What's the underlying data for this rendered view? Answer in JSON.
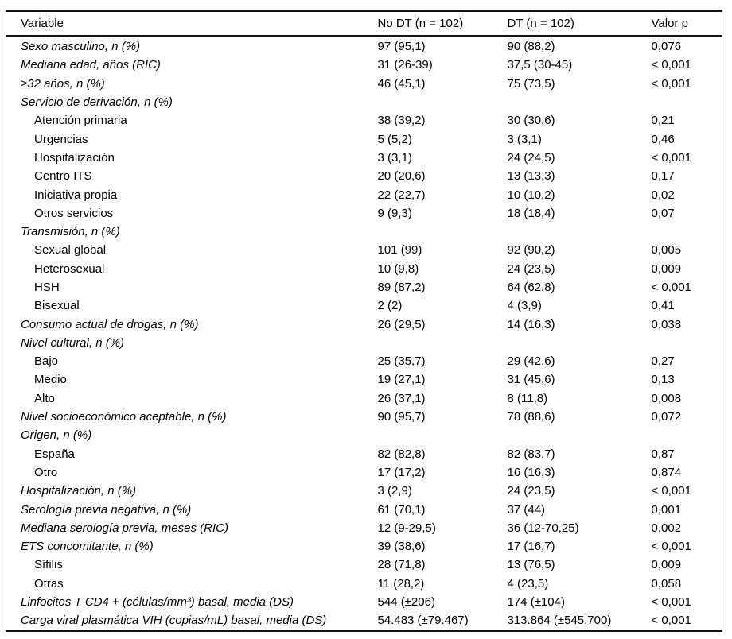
{
  "table": {
    "headers": [
      "Variable",
      "No DT (n = 102)",
      "DT (n = 102)",
      "Valor p"
    ],
    "rows": [
      {
        "label": "Sexo masculino, n (%)",
        "type": "main",
        "no_dt": "97 (95,1)",
        "dt": "90 (88,2)",
        "p": "0,076"
      },
      {
        "label": "Mediana edad, años (RIC)",
        "type": "main",
        "no_dt": "31 (26-39)",
        "dt": "37,5 (30-45)",
        "p": "< 0,001"
      },
      {
        "label": "≥32 años, n (%)",
        "type": "main",
        "no_dt": "46 (45,1)",
        "dt": "75 (73,5)",
        "p": "< 0,001"
      },
      {
        "label": "Servicio de derivación, n (%)",
        "type": "main",
        "no_dt": "",
        "dt": "",
        "p": ""
      },
      {
        "label": "Atención primaria",
        "type": "sub",
        "no_dt": "38 (39,2)",
        "dt": "30 (30,6)",
        "p": "0,21"
      },
      {
        "label": "Urgencias",
        "type": "sub",
        "no_dt": "5 (5,2)",
        "dt": "3 (3,1)",
        "p": "0,46"
      },
      {
        "label": "Hospitalización",
        "type": "sub",
        "no_dt": "3 (3,1)",
        "dt": "24 (24,5)",
        "p": "< 0,001"
      },
      {
        "label": "Centro ITS",
        "type": "sub",
        "no_dt": "20 (20,6)",
        "dt": "13 (13,3)",
        "p": "0,17"
      },
      {
        "label": "Iniciativa propia",
        "type": "sub",
        "no_dt": "22 (22,7)",
        "dt": "10 (10,2)",
        "p": "0,02"
      },
      {
        "label": "Otros servicios",
        "type": "sub",
        "no_dt": "9 (9,3)",
        "dt": "18 (18,4)",
        "p": "0,07"
      },
      {
        "label": "Transmisión, n (%)",
        "type": "main",
        "no_dt": "",
        "dt": "",
        "p": ""
      },
      {
        "label": "Sexual global",
        "type": "sub",
        "no_dt": "101 (99)",
        "dt": "92 (90,2)",
        "p": "0,005"
      },
      {
        "label": "Heterosexual",
        "type": "sub",
        "no_dt": "10 (9,8)",
        "dt": "24 (23,5)",
        "p": "0,009"
      },
      {
        "label": "HSH",
        "type": "sub",
        "no_dt": "89 (87,2)",
        "dt": "64 (62,8)",
        "p": "< 0,001"
      },
      {
        "label": "Bisexual",
        "type": "sub",
        "no_dt": "2 (2)",
        "dt": "4 (3,9)",
        "p": "0,41"
      },
      {
        "label": "Consumo actual de drogas, n (%)",
        "type": "main",
        "no_dt": "26 (29,5)",
        "dt": "14 (16,3)",
        "p": "0,038"
      },
      {
        "label": "Nivel cultural, n (%)",
        "type": "main",
        "no_dt": "",
        "dt": "",
        "p": ""
      },
      {
        "label": "Bajo",
        "type": "sub",
        "no_dt": "25 (35,7)",
        "dt": "29 (42,6)",
        "p": "0,27"
      },
      {
        "label": "Medio",
        "type": "sub",
        "no_dt": "19 (27,1)",
        "dt": "31 (45,6)",
        "p": "0,13"
      },
      {
        "label": "Alto",
        "type": "sub",
        "no_dt": "26 (37,1)",
        "dt": "8 (11,8)",
        "p": "0,008"
      },
      {
        "label": "Nivel socioeconómico aceptable, n (%)",
        "type": "main",
        "no_dt": "90 (95,7)",
        "dt": "78 (88,6)",
        "p": "0,072"
      },
      {
        "label": "Origen, n (%)",
        "type": "main",
        "no_dt": "",
        "dt": "",
        "p": ""
      },
      {
        "label": "España",
        "type": "sub",
        "no_dt": "82 (82,8)",
        "dt": "82 (83,7)",
        "p": "0,87"
      },
      {
        "label": "Otro",
        "type": "sub",
        "no_dt": "17 (17,2)",
        "dt": "16 (16,3)",
        "p": "0,874"
      },
      {
        "label": "Hospitalización, n (%)",
        "type": "main",
        "no_dt": "3 (2,9)",
        "dt": "24 (23,5)",
        "p": "< 0,001"
      },
      {
        "label": "Serología previa negativa, n (%)",
        "type": "main",
        "no_dt": "61 (70,1)",
        "dt": "37 (44)",
        "p": "0,001"
      },
      {
        "label": "Mediana serología previa, meses (RIC)",
        "type": "main",
        "no_dt": "12 (9-29,5)",
        "dt": "36 (12-70,25)",
        "p": "0,002"
      },
      {
        "label": "ETS concomitante, n (%)",
        "type": "main",
        "no_dt": "39 (38,6)",
        "dt": "17 (16,7)",
        "p": "< 0,001"
      },
      {
        "label": "Sífilis",
        "type": "sub",
        "no_dt": "28 (71,8)",
        "dt": "13 (76,5)",
        "p": "0,009"
      },
      {
        "label": "Otras",
        "type": "sub",
        "no_dt": "11 (28,2)",
        "dt": "4 (23,5)",
        "p": "0,058"
      },
      {
        "label": "Linfocitos T CD4 + (células/mm³) basal, media (DS)",
        "type": "main",
        "no_dt": "544 (±206)",
        "dt": "174 (±104)",
        "p": "< 0,001"
      },
      {
        "label": "Carga viral plasmática VIH (copias/mL) basal, media (DS)",
        "type": "main",
        "no_dt": "54.483 (±79.467)",
        "dt": "313.864 (±545.700)",
        "p": "< 0,001"
      }
    ]
  },
  "colors": {
    "text": "#000000",
    "rule_heavy": "#141414",
    "rule_light": "#8f8f8f",
    "background": "#ffffff"
  }
}
